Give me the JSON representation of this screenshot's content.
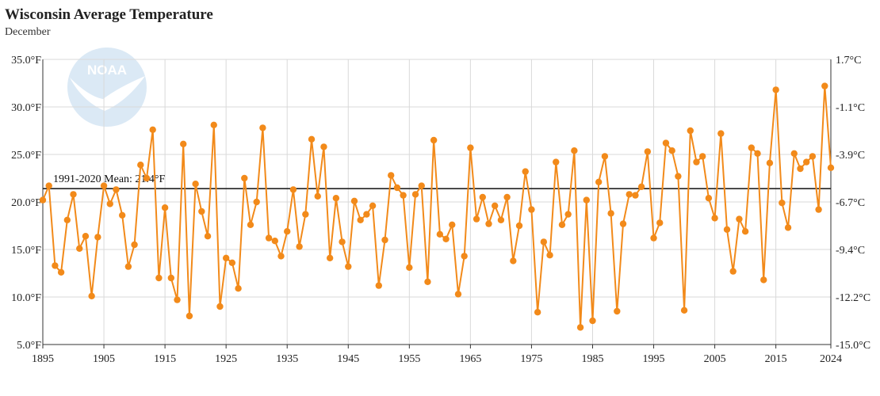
{
  "title": "Wisconsin Average Temperature",
  "subtitle": "December",
  "logo_text": "NOAA",
  "colors": {
    "series": "#f28a1a",
    "mean_line": "#222222",
    "grid": "#d9d9d9",
    "logo": "#dbe9f5"
  },
  "chart_data": {
    "type": "line",
    "title": "Wisconsin Average Temperature",
    "subtitle": "December",
    "xlim": [
      1895,
      2024
    ],
    "ylim": [
      5.0,
      35.0
    ],
    "y2lim": [
      -15.0,
      1.7
    ],
    "x_ticks": [
      "1895",
      "1905",
      "1915",
      "1925",
      "1935",
      "1945",
      "1955",
      "1965",
      "1975",
      "1985",
      "1995",
      "2005",
      "2015",
      "2024"
    ],
    "y_ticks_left": [
      "5.0°F",
      "10.0°F",
      "15.0°F",
      "20.0°F",
      "25.0°F",
      "30.0°F",
      "35.0°F"
    ],
    "y_ticks_right": [
      "-15.0°C",
      "-12.2°C",
      "-9.4°C",
      "-6.7°C",
      "-3.9°C",
      "-1.1°C",
      "1.7°C"
    ],
    "grid": true,
    "mean": {
      "label": "1991-2020 Mean: 21.4°F",
      "value": 21.4
    },
    "x": [
      1895,
      1896,
      1897,
      1898,
      1899,
      1900,
      1901,
      1902,
      1903,
      1904,
      1905,
      1906,
      1907,
      1908,
      1909,
      1910,
      1911,
      1912,
      1913,
      1914,
      1915,
      1916,
      1917,
      1918,
      1919,
      1920,
      1921,
      1922,
      1923,
      1924,
      1925,
      1926,
      1927,
      1928,
      1929,
      1930,
      1931,
      1932,
      1933,
      1934,
      1935,
      1936,
      1937,
      1938,
      1939,
      1940,
      1941,
      1942,
      1943,
      1944,
      1945,
      1946,
      1947,
      1948,
      1949,
      1950,
      1951,
      1952,
      1953,
      1954,
      1955,
      1956,
      1957,
      1958,
      1959,
      1960,
      1961,
      1962,
      1963,
      1964,
      1965,
      1966,
      1967,
      1968,
      1969,
      1970,
      1971,
      1972,
      1973,
      1974,
      1975,
      1976,
      1977,
      1978,
      1979,
      1980,
      1981,
      1982,
      1983,
      1984,
      1985,
      1986,
      1987,
      1988,
      1989,
      1990,
      1991,
      1992,
      1993,
      1994,
      1995,
      1996,
      1997,
      1998,
      1999,
      2000,
      2001,
      2002,
      2003,
      2004,
      2005,
      2006,
      2007,
      2008,
      2009,
      2010,
      2011,
      2012,
      2013,
      2014,
      2015,
      2016,
      2017,
      2018,
      2019,
      2020,
      2021,
      2022,
      2023,
      2024
    ],
    "values": [
      20.2,
      21.7,
      13.3,
      12.6,
      18.1,
      20.8,
      15.1,
      16.4,
      10.1,
      16.3,
      21.7,
      19.8,
      21.3,
      18.6,
      13.2,
      15.5,
      23.9,
      22.5,
      27.6,
      12.0,
      19.4,
      12.0,
      9.7,
      26.1,
      8.0,
      21.9,
      19.0,
      16.4,
      28.1,
      9.0,
      14.1,
      13.6,
      10.9,
      22.5,
      17.6,
      20.0,
      27.8,
      16.2,
      15.9,
      14.3,
      16.9,
      21.3,
      15.3,
      18.7,
      26.6,
      20.6,
      25.8,
      14.1,
      20.4,
      15.8,
      13.2,
      20.1,
      18.1,
      18.7,
      19.6,
      11.2,
      16.0,
      22.8,
      21.5,
      20.7,
      13.1,
      20.8,
      21.7,
      11.6,
      26.5,
      16.6,
      16.1,
      17.6,
      10.3,
      14.3,
      25.7,
      18.2,
      20.5,
      17.7,
      19.6,
      18.1,
      20.5,
      13.8,
      17.5,
      23.2,
      19.2,
      8.4,
      15.8,
      14.4,
      24.2,
      17.6,
      18.7,
      25.4,
      6.8,
      20.2,
      7.5,
      22.1,
      24.8,
      18.8,
      8.5,
      17.7,
      20.8,
      20.7,
      21.6,
      25.3,
      16.2,
      17.8,
      26.2,
      25.4,
      22.7,
      8.6,
      27.5,
      24.2,
      24.8,
      20.4,
      18.3,
      27.2,
      17.1,
      12.7,
      18.2,
      16.9,
      25.7,
      25.1,
      11.8,
      24.1,
      31.8,
      19.9,
      17.3,
      25.1,
      23.5,
      24.2,
      24.8,
      19.2,
      32.2,
      23.6
    ]
  }
}
